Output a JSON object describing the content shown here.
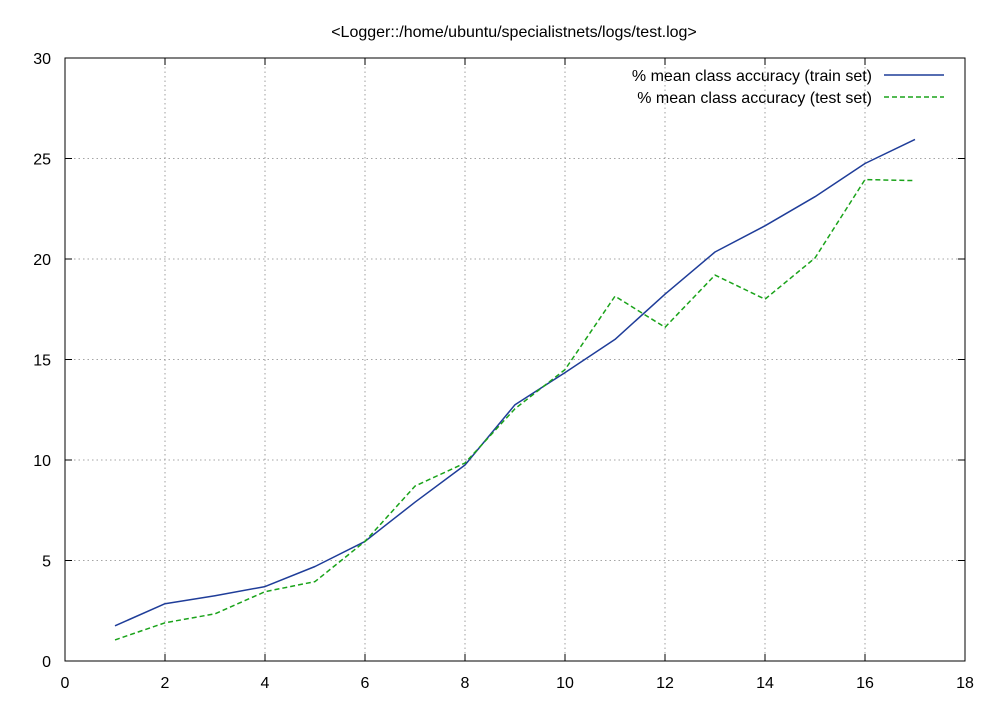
{
  "chart_data": {
    "type": "line",
    "title": "<Logger::/home/ubuntu/specialistnets/logs/test.log>",
    "xlabel": "",
    "ylabel": "",
    "xlim": [
      0,
      18
    ],
    "ylim": [
      0,
      30
    ],
    "xticks": [
      0,
      2,
      4,
      6,
      8,
      10,
      12,
      14,
      16,
      18
    ],
    "yticks": [
      0,
      5,
      10,
      15,
      20,
      25,
      30
    ],
    "grid": true,
    "legend_position": "top-right",
    "x": [
      1,
      2,
      3,
      4,
      5,
      6,
      7,
      8,
      9,
      10,
      11,
      12,
      13,
      14,
      15,
      16,
      17
    ],
    "series": [
      {
        "name": "% mean class accuracy (train set)",
        "color": "#1f3d99",
        "dash": "solid",
        "values": [
          1.75,
          2.85,
          3.25,
          3.7,
          4.7,
          5.95,
          7.9,
          9.75,
          12.75,
          14.35,
          16.0,
          18.25,
          20.35,
          21.65,
          23.1,
          24.75,
          25.95
        ]
      },
      {
        "name": "% mean class accuracy (test set)",
        "color": "#1aa31a",
        "dash": "dashed",
        "values": [
          1.05,
          1.9,
          2.35,
          3.45,
          3.95,
          5.95,
          8.7,
          9.85,
          12.55,
          14.5,
          18.15,
          16.6,
          19.2,
          18.0,
          20.05,
          23.95,
          23.9
        ]
      }
    ]
  }
}
